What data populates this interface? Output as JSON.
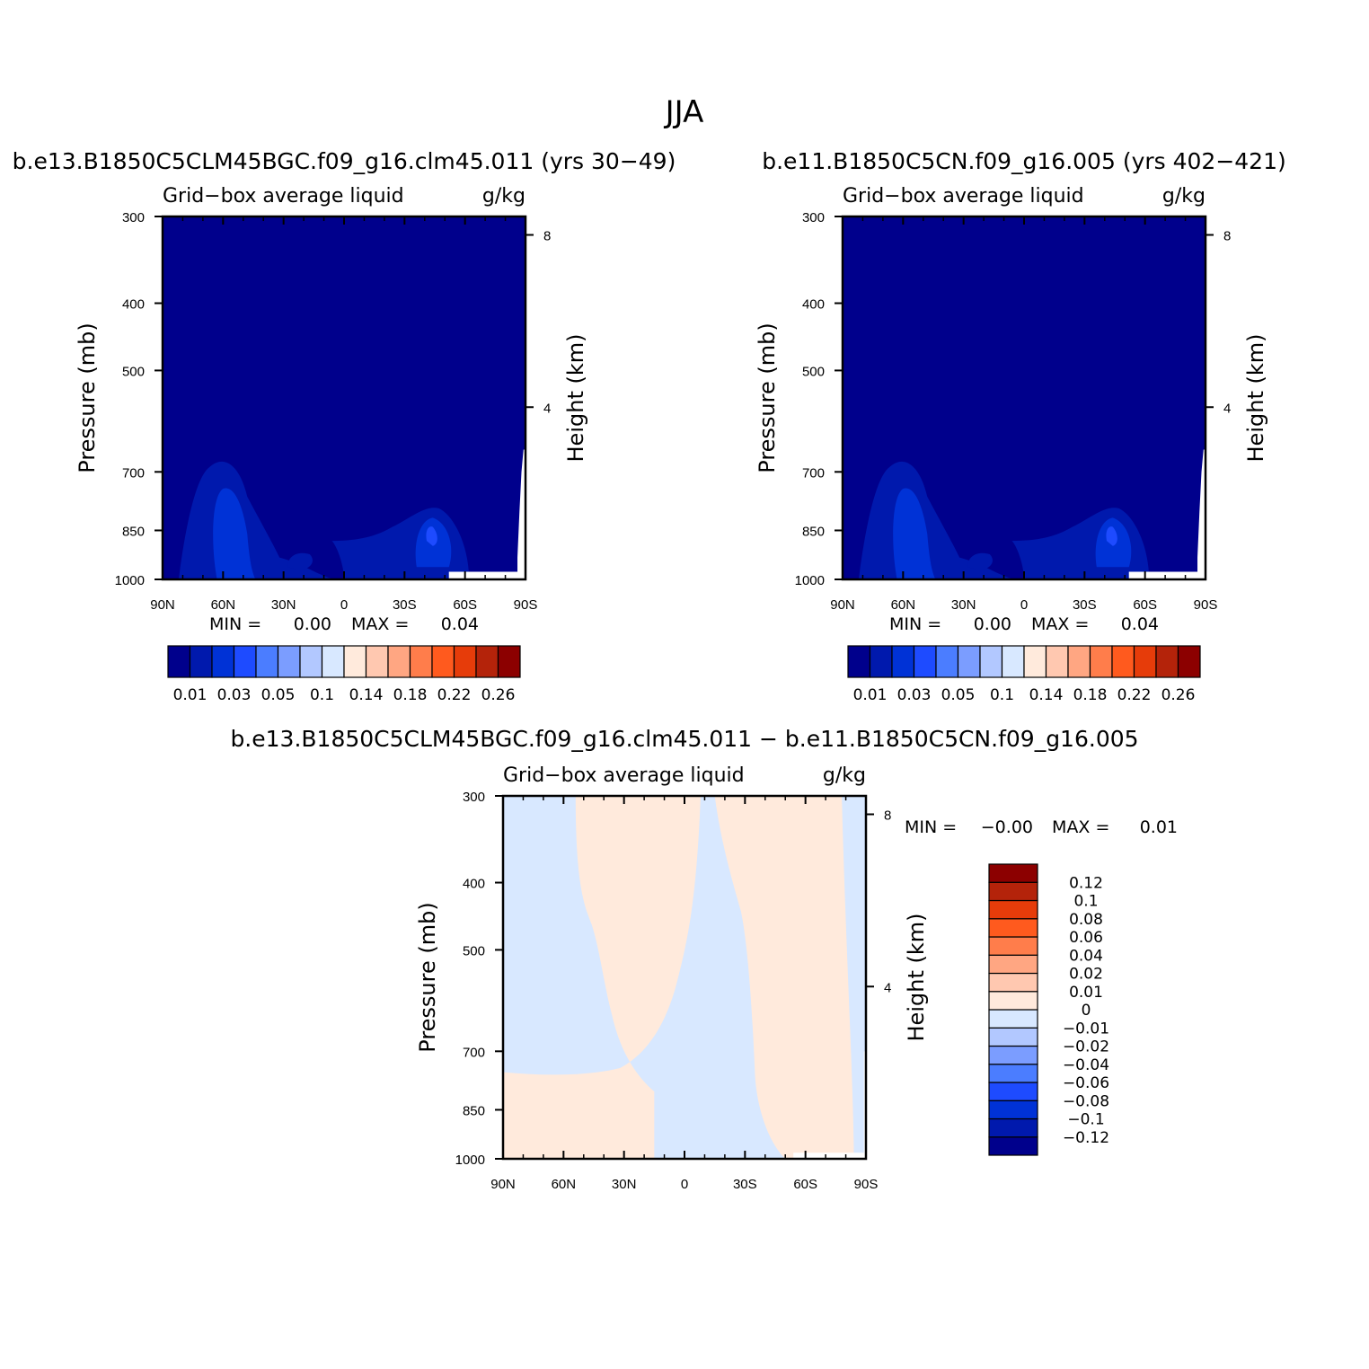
{
  "page": {
    "title": "JJA",
    "diff_title": "b.e13.B1850C5CLM45BGC.f09_g16.clm45.011 − b.e11.B1850C5CN.f09_g16.005"
  },
  "colors": {
    "levels": [
      "#00008c",
      "#0019ad",
      "#0032d6",
      "#1e4bff",
      "#4b7dff",
      "#7b9dff",
      "#b2c8ff",
      "#d8e8ff",
      "#ffeadc",
      "#ffc8b0",
      "#ffa682",
      "#ff7d4b",
      "#ff5a1e",
      "#e63c0a",
      "#b4230a",
      "#8c0000"
    ]
  },
  "chart_data": [
    {
      "type": "heatmap",
      "panel": "left",
      "title": "b.e13.B1850C5CLM45BGC.f09_g16.clm45.011 (yrs 30−49)",
      "left_string": "Grid−box average liquid",
      "right_string": "g/kg",
      "ylabel": "Pressure (mb)",
      "ylabel_right": "Height (km)",
      "x_ticks": [
        "90N",
        "60N",
        "30N",
        "0",
        "30S",
        "60S",
        "90S"
      ],
      "y_ticks": [
        "300",
        "400",
        "500",
        "700",
        "850",
        "1000"
      ],
      "y_right_ticks": [
        "8",
        "4"
      ],
      "stats": {
        "min_label": "MIN =",
        "min": "0.00",
        "max_label": "MAX =",
        "max": "0.04"
      },
      "colorbar": {
        "orientation": "horizontal",
        "labels": [
          "0.01",
          "0.03",
          "0.05",
          "0.1",
          "0.14",
          "0.18",
          "0.22",
          "0.26"
        ]
      },
      "features": [
        {
          "lat": 58,
          "p": 800,
          "value": 0.04
        },
        {
          "lat": -43,
          "p": 860,
          "value": 0.04
        },
        {
          "lat": 15,
          "p": 920,
          "value": 0.02
        }
      ]
    },
    {
      "type": "heatmap",
      "panel": "right",
      "title": "b.e11.B1850C5CN.f09_g16.005 (yrs 402−421)",
      "left_string": "Grid−box average liquid",
      "right_string": "g/kg",
      "ylabel": "Pressure (mb)",
      "ylabel_right": "Height (km)",
      "x_ticks": [
        "90N",
        "60N",
        "30N",
        "0",
        "30S",
        "60S",
        "90S"
      ],
      "y_ticks": [
        "300",
        "400",
        "500",
        "700",
        "850",
        "1000"
      ],
      "y_right_ticks": [
        "8",
        "4"
      ],
      "stats": {
        "min_label": "MIN =",
        "min": "0.00",
        "max_label": "MAX =",
        "max": "0.04"
      },
      "colorbar": {
        "orientation": "horizontal",
        "labels": [
          "0.01",
          "0.03",
          "0.05",
          "0.1",
          "0.14",
          "0.18",
          "0.22",
          "0.26"
        ]
      },
      "features": [
        {
          "lat": 58,
          "p": 800,
          "value": 0.04
        },
        {
          "lat": -43,
          "p": 860,
          "value": 0.04
        },
        {
          "lat": 15,
          "p": 920,
          "value": 0.02
        }
      ]
    },
    {
      "type": "heatmap",
      "panel": "difference",
      "title": "b.e13.B1850C5CLM45BGC.f09_g16.clm45.011 − b.e11.B1850C5CN.f09_g16.005",
      "left_string": "Grid−box average liquid",
      "right_string": "g/kg",
      "ylabel": "Pressure (mb)",
      "ylabel_right": "Height (km)",
      "x_ticks": [
        "90N",
        "60N",
        "30N",
        "0",
        "30S",
        "60S",
        "90S"
      ],
      "y_ticks": [
        "300",
        "400",
        "500",
        "700",
        "850",
        "1000"
      ],
      "y_right_ticks": [
        "8",
        "4"
      ],
      "stats": {
        "min_label": "MIN =",
        "min": "−0.00",
        "max_label": "MAX =",
        "max": "0.01"
      },
      "colorbar": {
        "orientation": "vertical",
        "labels": [
          "0.12",
          "0.1",
          "0.08",
          "0.06",
          "0.04",
          "0.02",
          "0.01",
          "0",
          "−0.01",
          "−0.02",
          "−0.04",
          "−0.06",
          "−0.08",
          "−0.1",
          "−0.12"
        ]
      }
    }
  ]
}
